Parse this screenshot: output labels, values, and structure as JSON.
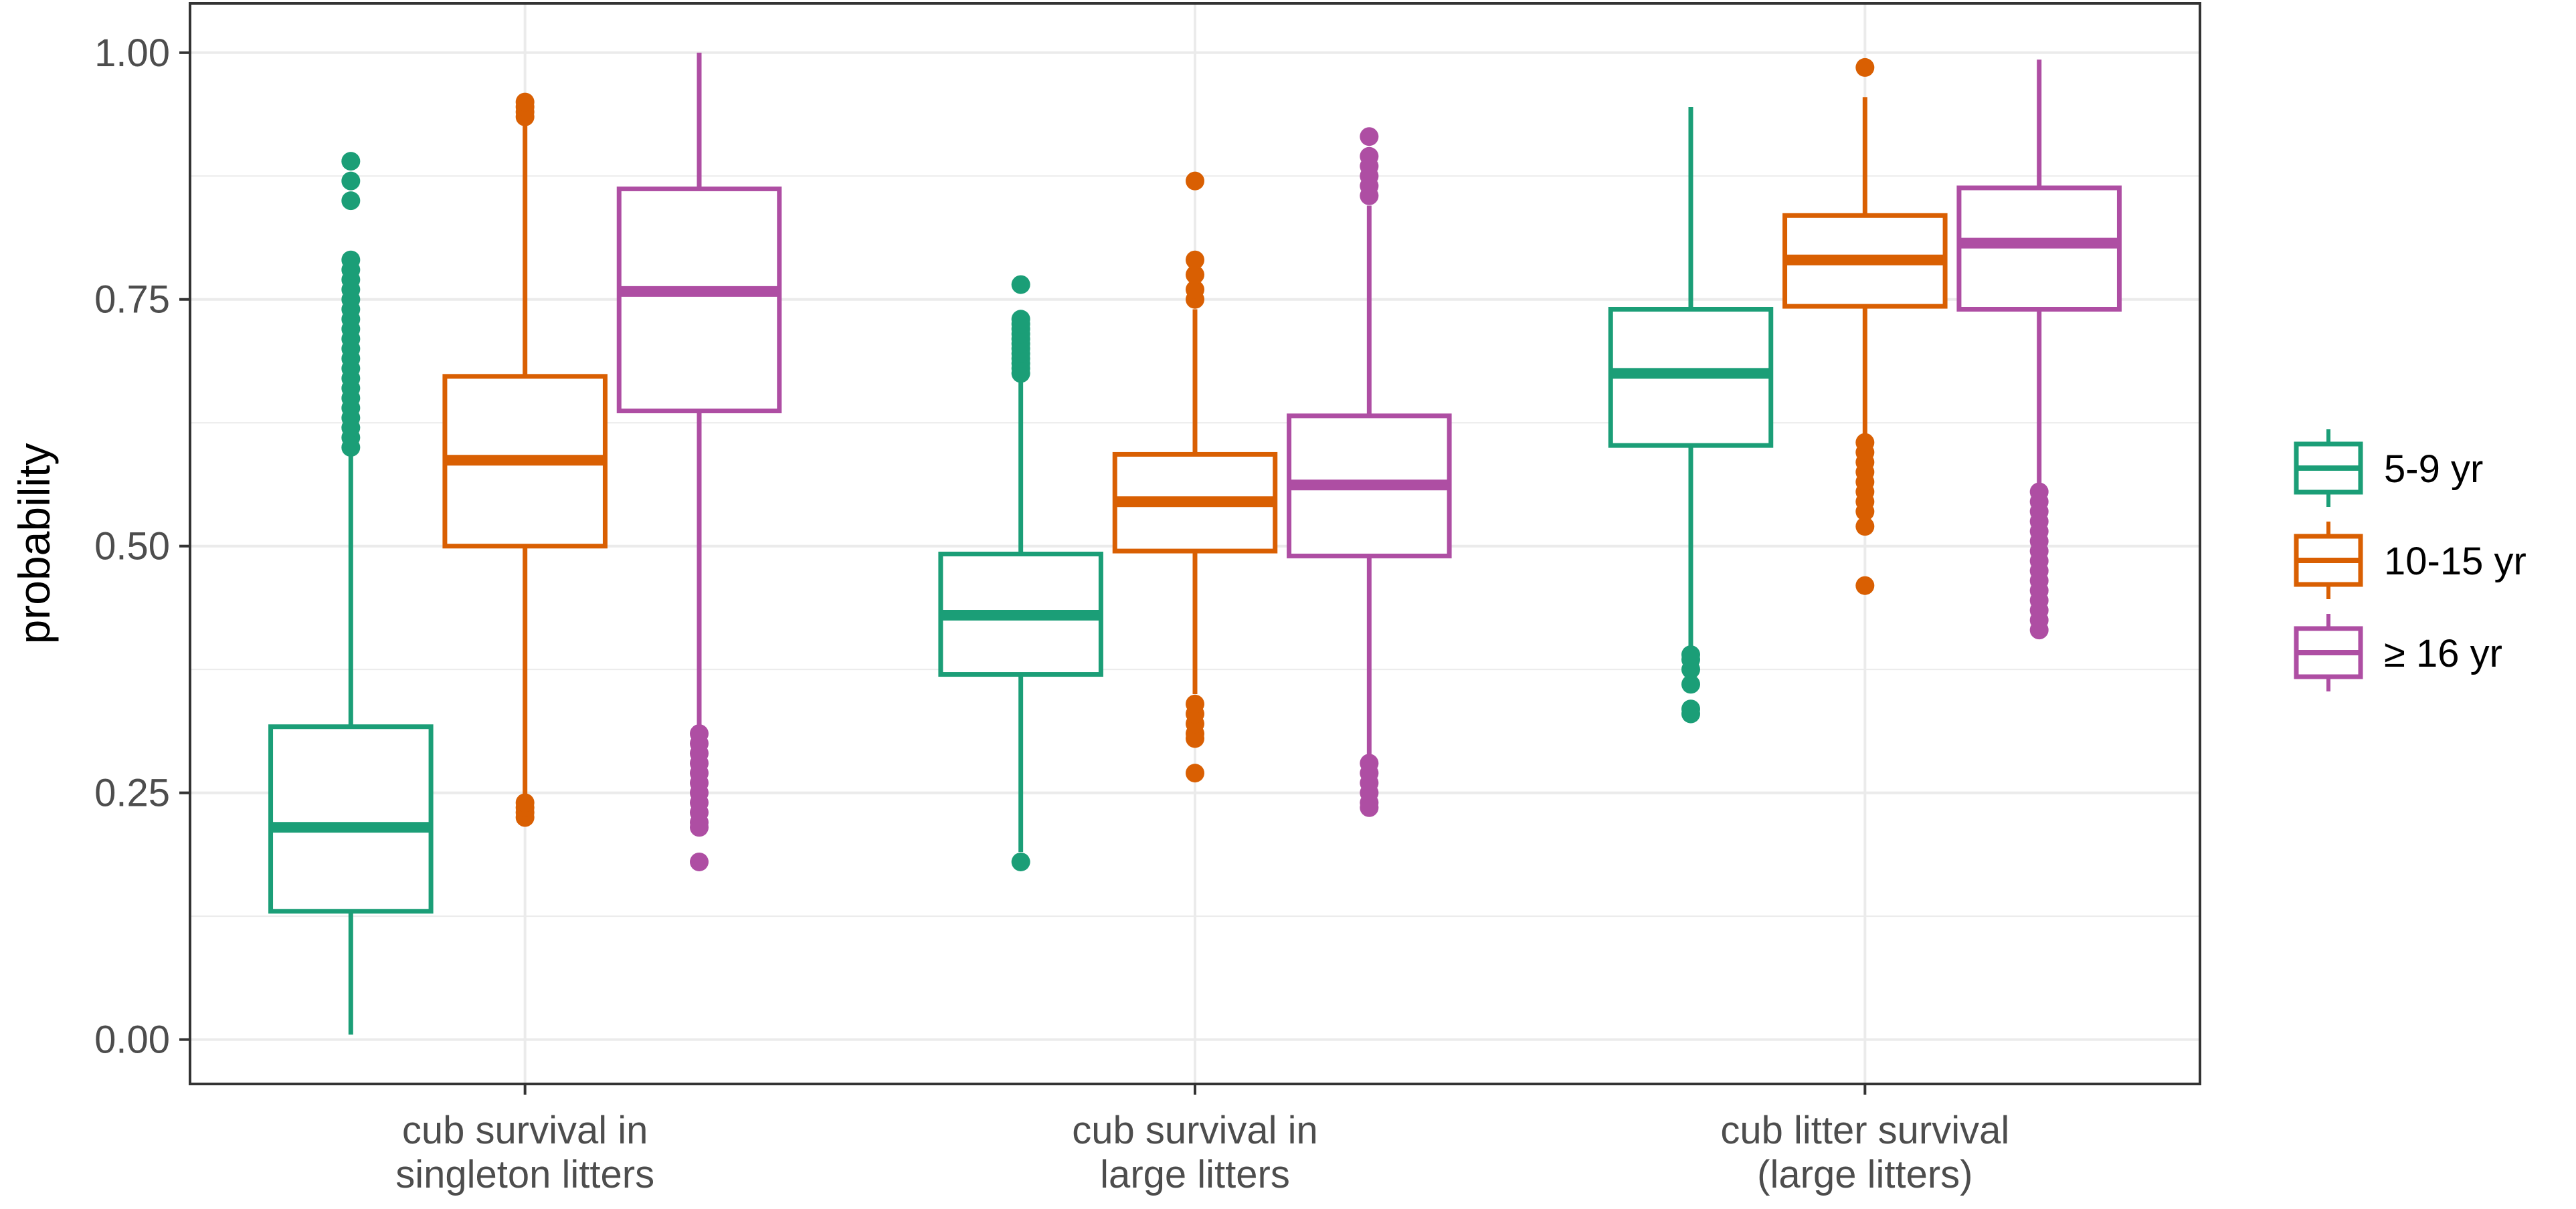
{
  "chart_data": {
    "type": "boxplot",
    "title": "",
    "xlabel": "",
    "ylabel": "probability",
    "ylim": [
      -0.045,
      1.05
    ],
    "y_ticks": [
      "0.00",
      "0.25",
      "0.50",
      "0.75",
      "1.00"
    ],
    "y_tick_values": [
      0,
      0.25,
      0.5,
      0.75,
      1.0
    ],
    "grid": true,
    "legend_position": "right",
    "categories": [
      [
        "cub survival in",
        "singleton litters"
      ],
      [
        "cub survival in",
        "large litters"
      ],
      [
        "cub litter survival",
        "(large litters)"
      ]
    ],
    "series": [
      {
        "name": "5-9 yr",
        "color": "#1b9e77",
        "boxes": [
          {
            "whisker_low": 0.005,
            "q1": 0.13,
            "median": 0.215,
            "q3": 0.317,
            "whisker_high": 0.6,
            "outliers": [
              0.6,
              0.61,
              0.62,
              0.63,
              0.64,
              0.65,
              0.66,
              0.67,
              0.68,
              0.69,
              0.7,
              0.71,
              0.72,
              0.73,
              0.74,
              0.75,
              0.76,
              0.77,
              0.78,
              0.79,
              0.85,
              0.87,
              0.89
            ]
          },
          {
            "whisker_low": 0.19,
            "q1": 0.37,
            "median": 0.43,
            "q3": 0.492,
            "whisker_high": 0.67,
            "outliers": [
              0.18,
              0.675,
              0.68,
              0.685,
              0.69,
              0.695,
              0.7,
              0.705,
              0.71,
              0.715,
              0.72,
              0.725,
              0.73,
              0.765
            ]
          },
          {
            "whisker_low": 0.39,
            "q1": 0.602,
            "median": 0.675,
            "q3": 0.74,
            "whisker_high": 0.945,
            "outliers": [
              0.33,
              0.335,
              0.36,
              0.375,
              0.385,
              0.39
            ]
          }
        ]
      },
      {
        "name": "10-15 yr",
        "color": "#d95f02",
        "boxes": [
          {
            "whisker_low": 0.24,
            "q1": 0.5,
            "median": 0.587,
            "q3": 0.672,
            "whisker_high": 0.93,
            "outliers": [
              0.225,
              0.23,
              0.235,
              0.24,
              0.935,
              0.94,
              0.945,
              0.95
            ]
          },
          {
            "whisker_low": 0.35,
            "q1": 0.495,
            "median": 0.545,
            "q3": 0.593,
            "whisker_high": 0.74,
            "outliers": [
              0.27,
              0.305,
              0.31,
              0.32,
              0.33,
              0.34,
              0.75,
              0.76,
              0.775,
              0.79,
              0.87
            ]
          },
          {
            "whisker_low": 0.61,
            "q1": 0.743,
            "median": 0.79,
            "q3": 0.835,
            "whisker_high": 0.955,
            "outliers": [
              0.46,
              0.52,
              0.535,
              0.545,
              0.555,
              0.565,
              0.575,
              0.585,
              0.595,
              0.605,
              0.985
            ]
          }
        ]
      },
      {
        "name": "≥ 16 yr",
        "color": "#ae4ea3",
        "boxes": [
          {
            "whisker_low": 0.31,
            "q1": 0.637,
            "median": 0.758,
            "q3": 0.862,
            "whisker_high": 1.0,
            "outliers": [
              0.18,
              0.215,
              0.22,
              0.23,
              0.24,
              0.25,
              0.26,
              0.27,
              0.28,
              0.29,
              0.3,
              0.31
            ]
          },
          {
            "whisker_low": 0.285,
            "q1": 0.49,
            "median": 0.562,
            "q3": 0.632,
            "whisker_high": 0.845,
            "outliers": [
              0.235,
              0.24,
              0.25,
              0.26,
              0.27,
              0.28,
              0.855,
              0.865,
              0.875,
              0.885,
              0.895,
              0.915
            ]
          },
          {
            "whisker_low": 0.56,
            "q1": 0.74,
            "median": 0.807,
            "q3": 0.863,
            "whisker_high": 0.993,
            "outliers": [
              0.415,
              0.425,
              0.435,
              0.445,
              0.455,
              0.465,
              0.475,
              0.485,
              0.495,
              0.505,
              0.515,
              0.525,
              0.535,
              0.545,
              0.555
            ]
          }
        ]
      }
    ]
  }
}
